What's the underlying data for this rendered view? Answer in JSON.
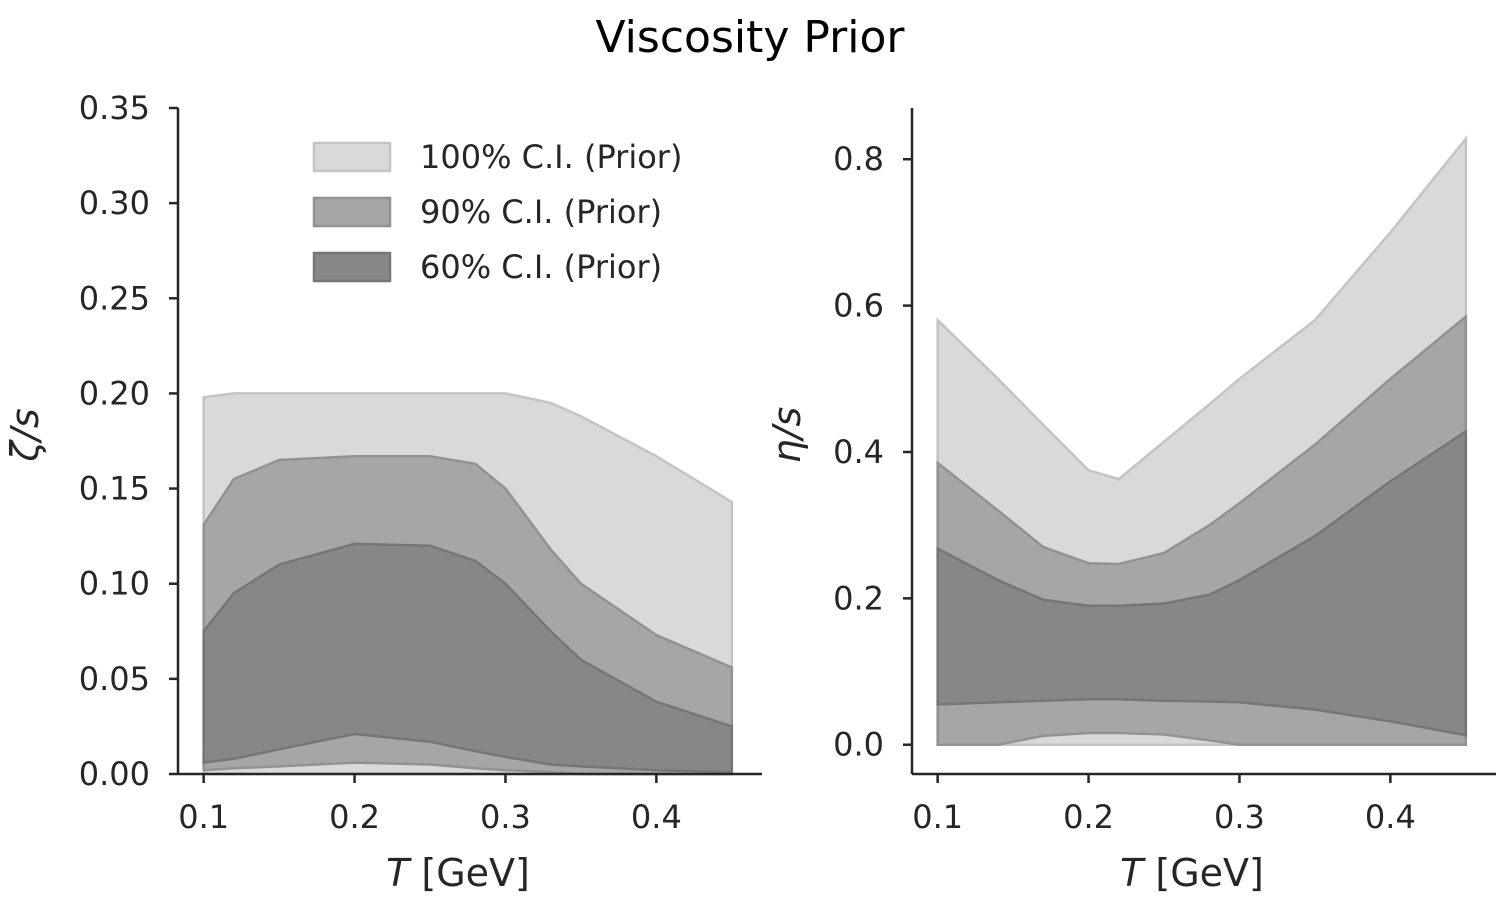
{
  "title": "Viscosity Prior",
  "colors": {
    "band_100": "#d9d9d9",
    "band_90": "#a6a6a6",
    "band_60": "#878787",
    "axis": "#262626"
  },
  "chart_data": [
    {
      "type": "area",
      "panel": "left",
      "xlabel_italic": "T",
      "xlabel_rest": " [GeV]",
      "ylabel": "ζ/s",
      "xlim": [
        0.083,
        0.47
      ],
      "ylim": [
        0,
        0.35
      ],
      "xticks": [
        0.1,
        0.2,
        0.3,
        0.4
      ],
      "xtick_labels": [
        "0.1",
        "0.2",
        "0.3",
        "0.4"
      ],
      "yticks": [
        0,
        0.05,
        0.1,
        0.15,
        0.2,
        0.25,
        0.3,
        0.35
      ],
      "ytick_labels": [
        "0.00",
        "0.05",
        "0.10",
        "0.15",
        "0.20",
        "0.25",
        "0.30",
        "0.35"
      ],
      "legend": {
        "placement": "top-right",
        "entries": [
          "100% C.I. (Prior)",
          "90% C.I. (Prior)",
          "60% C.I. (Prior)"
        ]
      },
      "x": [
        0.1,
        0.12,
        0.15,
        0.2,
        0.25,
        0.28,
        0.3,
        0.33,
        0.35,
        0.4,
        0.45
      ],
      "series": [
        {
          "name": "100% C.I. (Prior)",
          "upper": [
            0.198,
            0.2,
            0.2,
            0.2,
            0.2,
            0.2,
            0.2,
            0.195,
            0.188,
            0.167,
            0.143
          ],
          "lower": [
            0.0,
            0.0,
            0.0,
            0.0,
            0.0,
            0.0,
            0.0,
            0.0,
            0.0,
            0.0,
            0.0
          ]
        },
        {
          "name": "90% C.I. (Prior)",
          "upper": [
            0.131,
            0.155,
            0.165,
            0.167,
            0.167,
            0.163,
            0.15,
            0.118,
            0.1,
            0.073,
            0.056
          ],
          "lower": [
            0.002,
            0.003,
            0.004,
            0.006,
            0.005,
            0.003,
            0.002,
            0.001,
            0.0,
            0.0,
            0.0
          ]
        },
        {
          "name": "60% C.I. (Prior)",
          "upper": [
            0.075,
            0.095,
            0.11,
            0.121,
            0.12,
            0.112,
            0.1,
            0.075,
            0.06,
            0.038,
            0.025
          ],
          "lower": [
            0.006,
            0.008,
            0.013,
            0.021,
            0.017,
            0.012,
            0.009,
            0.005,
            0.004,
            0.002,
            0.001
          ]
        }
      ]
    },
    {
      "type": "area",
      "panel": "right",
      "xlabel_italic": "T",
      "xlabel_rest": " [GeV]",
      "ylabel": "η/s",
      "xlim": [
        0.083,
        0.47
      ],
      "ylim": [
        -0.04,
        0.87
      ],
      "xticks": [
        0.1,
        0.2,
        0.3,
        0.4
      ],
      "xtick_labels": [
        "0.1",
        "0.2",
        "0.3",
        "0.4"
      ],
      "yticks": [
        0,
        0.2,
        0.4,
        0.6,
        0.8
      ],
      "ytick_labels": [
        "0.0",
        "0.2",
        "0.4",
        "0.6",
        "0.8"
      ],
      "x": [
        0.1,
        0.14,
        0.17,
        0.2,
        0.22,
        0.25,
        0.28,
        0.3,
        0.35,
        0.4,
        0.45
      ],
      "series": [
        {
          "name": "100% C.I. (Prior)",
          "upper": [
            0.58,
            0.5,
            0.437,
            0.375,
            0.363,
            0.414,
            0.465,
            0.5,
            0.58,
            0.7,
            0.828
          ],
          "lower": [
            0.0,
            0.0,
            0.0,
            0.0,
            0.0,
            0.0,
            0.0,
            0.0,
            0.0,
            0.0,
            0.0
          ]
        },
        {
          "name": "90% C.I. (Prior)",
          "upper": [
            0.385,
            0.32,
            0.27,
            0.248,
            0.247,
            0.262,
            0.3,
            0.33,
            0.41,
            0.5,
            0.585
          ],
          "lower": [
            0.0,
            0.0,
            0.012,
            0.016,
            0.016,
            0.014,
            0.006,
            0.0,
            0.0,
            0.0,
            0.0
          ]
        },
        {
          "name": "60% C.I. (Prior)",
          "upper": [
            0.268,
            0.225,
            0.198,
            0.19,
            0.19,
            0.193,
            0.205,
            0.225,
            0.285,
            0.36,
            0.428
          ],
          "lower": [
            0.055,
            0.058,
            0.06,
            0.062,
            0.062,
            0.06,
            0.059,
            0.058,
            0.048,
            0.032,
            0.013
          ]
        }
      ]
    }
  ]
}
